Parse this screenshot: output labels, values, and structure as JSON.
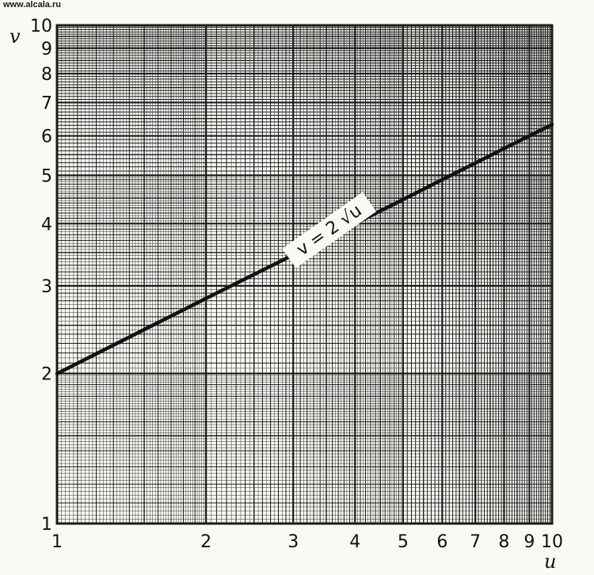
{
  "watermark": "www.alcala.ru",
  "chart_data": {
    "type": "line",
    "scale": "log-log",
    "grid": true,
    "xlabel": "u",
    "ylabel": "v",
    "xlim": [
      1,
      10
    ],
    "ylim": [
      1,
      10
    ],
    "x_ticks": [
      1,
      2,
      3,
      4,
      5,
      6,
      7,
      8,
      9,
      10
    ],
    "y_ticks": [
      1,
      2,
      3,
      4,
      5,
      6,
      7,
      8,
      9,
      10
    ],
    "x_tick_labels": [
      "1",
      "2",
      "3",
      "4",
      "5",
      "6",
      "7",
      "8",
      "9",
      "10"
    ],
    "y_tick_labels": [
      "1",
      "2",
      "3",
      "4",
      "5",
      "6",
      "7",
      "8",
      "9",
      "10"
    ],
    "series": [
      {
        "x": [
          1,
          2,
          3,
          4,
          5,
          6,
          7,
          8,
          9,
          10
        ],
        "y": [
          2,
          2.83,
          3.46,
          4,
          4.47,
          4.9,
          5.29,
          5.66,
          6,
          6.32
        ]
      }
    ],
    "annotations": [
      {
        "text": "v = 2 √u",
        "at": [
          3.6,
          3.8
        ]
      }
    ],
    "colors": {
      "line": "#111111",
      "grid": "#1a1a1a",
      "background": "#fbf9f3"
    }
  }
}
